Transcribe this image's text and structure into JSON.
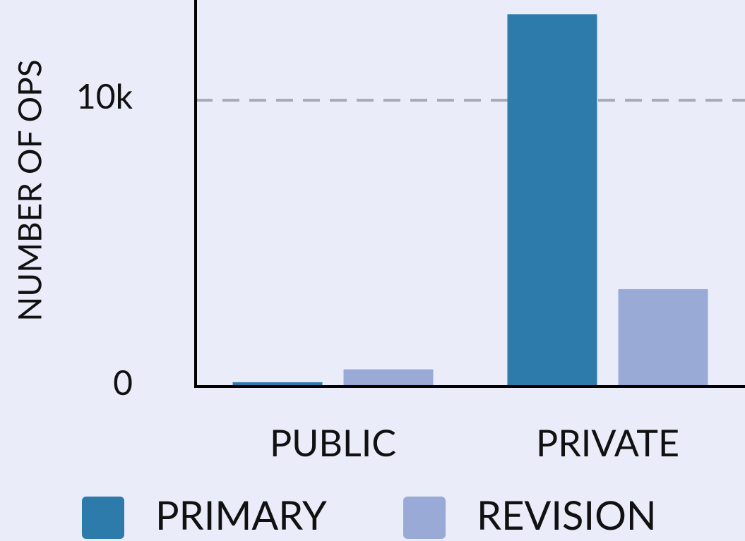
{
  "chart_data": {
    "type": "bar",
    "y_label": "NUMBER OF OPS",
    "categories": [
      "PUBLIC",
      "PRIVATE"
    ],
    "series": [
      {
        "name": "PRIMARY",
        "color": "#2c7bab",
        "values": [
          150,
          13000
        ]
      },
      {
        "name": "REVISION",
        "color": "#99aad6",
        "values": [
          600,
          3400
        ]
      }
    ],
    "ylim": [
      0,
      13500
    ],
    "yticks": [
      0,
      {
        "value": 10000,
        "label": "10k"
      }
    ],
    "grid": true,
    "legend": "bottom"
  }
}
